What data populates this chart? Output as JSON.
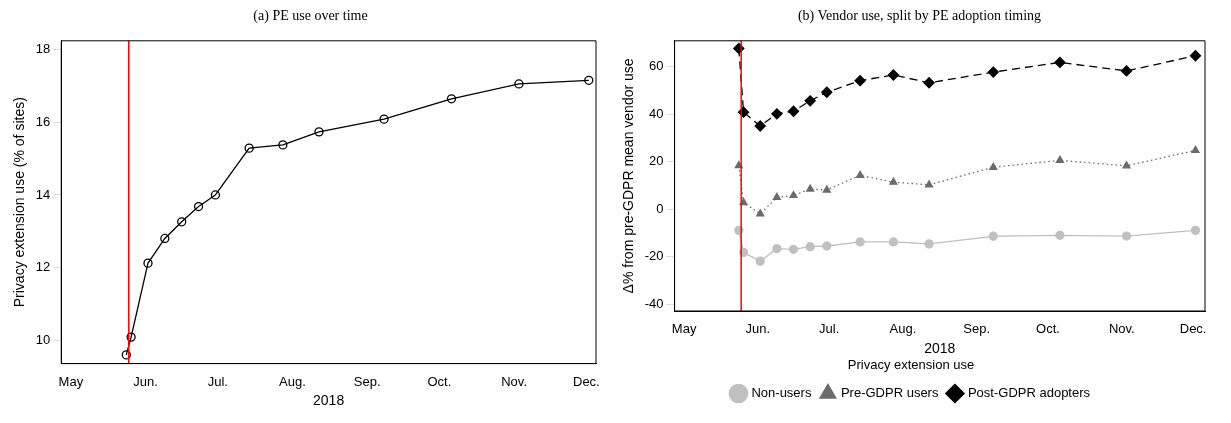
{
  "chart_data": [
    {
      "type": "line",
      "title": "(a) PE use over time",
      "xlabel": "2018",
      "ylabel": "Privacy extension use (% of sites)",
      "x": [
        "2018-05-24",
        "2018-05-26",
        "2018-06-02",
        "2018-06-09",
        "2018-06-16",
        "2018-06-23",
        "2018-06-30",
        "2018-07-14",
        "2018-07-28",
        "2018-08-12",
        "2018-09-08",
        "2018-10-06",
        "2018-11-03",
        "2018-12-02"
      ],
      "series": [
        {
          "color": "#000000",
          "marker": "circle",
          "line_style": "solid",
          "values": [
            9.59,
            10.08,
            12.12,
            12.8,
            13.26,
            13.68,
            14.0,
            15.29,
            15.38,
            15.74,
            16.09,
            16.65,
            17.06,
            17.16
          ]
        }
      ],
      "xlim": [
        "2018-04-27",
        "2018-12-05"
      ],
      "xticks": [
        {
          "value": "2018-05-01",
          "label": "May"
        },
        {
          "value": "2018-06-01",
          "label": "Jun."
        },
        {
          "value": "2018-07-01",
          "label": "Jul."
        },
        {
          "value": "2018-08-01",
          "label": "Aug."
        },
        {
          "value": "2018-09-01",
          "label": "Sep."
        },
        {
          "value": "2018-10-01",
          "label": "Oct."
        },
        {
          "value": "2018-11-01",
          "label": "Nov."
        },
        {
          "value": "2018-12-01",
          "label": "Dec."
        }
      ],
      "ylim": [
        9.35,
        18.25
      ],
      "yticks": [
        10,
        12,
        14,
        16,
        18
      ],
      "ref_lines": [
        {
          "axis": "x",
          "value": "2018-05-25",
          "color": "#ff0000"
        }
      ],
      "grid": false,
      "legend": false
    },
    {
      "type": "line",
      "title": "(b) Vendor use, split by PE adoption timing",
      "xlabel": "2018",
      "ylabel": "Δ% from pre-GDPR mean vendor use",
      "legend_title": "Privacy extension use",
      "x": [
        "2018-05-24",
        "2018-05-26",
        "2018-06-02",
        "2018-06-09",
        "2018-06-16",
        "2018-06-23",
        "2018-06-30",
        "2018-07-14",
        "2018-07-28",
        "2018-08-12",
        "2018-09-08",
        "2018-10-06",
        "2018-11-03",
        "2018-12-02"
      ],
      "series": [
        {
          "name": "Non-users",
          "color": "#c0c0c0",
          "marker": "circle",
          "line_style": "solid",
          "values": [
            -8.9,
            -18.2,
            -21.9,
            -16.6,
            -16.9,
            -15.8,
            -15.5,
            -13.8,
            -13.8,
            -14.6,
            -11.4,
            -11.0,
            -11.3,
            -8.9
          ]
        },
        {
          "name": "Pre-GDPR users",
          "color": "#6b6b6b",
          "marker": "triangle",
          "line_style": "dotted",
          "values": [
            18.4,
            2.8,
            -1.9,
            5.0,
            5.8,
            8.5,
            8.1,
            14.3,
            11.4,
            10.3,
            17.7,
            20.6,
            18.3,
            24.8
          ]
        },
        {
          "name": "Post-GDPR adopters",
          "color": "#000000",
          "marker": "diamond",
          "line_style": "dashed",
          "values": [
            67.8,
            40.9,
            35.1,
            40.2,
            41.3,
            45.7,
            49.3,
            54.2,
            56.6,
            53.3,
            57.8,
            61.9,
            58.3,
            64.7
          ]
        }
      ],
      "xlim": [
        "2018-04-27",
        "2018-12-06"
      ],
      "xticks": [
        {
          "value": "2018-05-01",
          "label": "May"
        },
        {
          "value": "2018-06-01",
          "label": "Jun."
        },
        {
          "value": "2018-07-01",
          "label": "Jul."
        },
        {
          "value": "2018-08-01",
          "label": "Aug."
        },
        {
          "value": "2018-09-01",
          "label": "Sep."
        },
        {
          "value": "2018-10-01",
          "label": "Oct."
        },
        {
          "value": "2018-11-01",
          "label": "Nov."
        },
        {
          "value": "2018-12-01",
          "label": "Dec."
        }
      ],
      "ylim": [
        -42.9,
        71
      ],
      "yticks": [
        -40,
        -20,
        0,
        20,
        40,
        60
      ],
      "ref_lines": [
        {
          "axis": "x",
          "value": "2018-05-25",
          "color": "#ff0000"
        }
      ],
      "grid": false,
      "legend": "bottom"
    }
  ]
}
